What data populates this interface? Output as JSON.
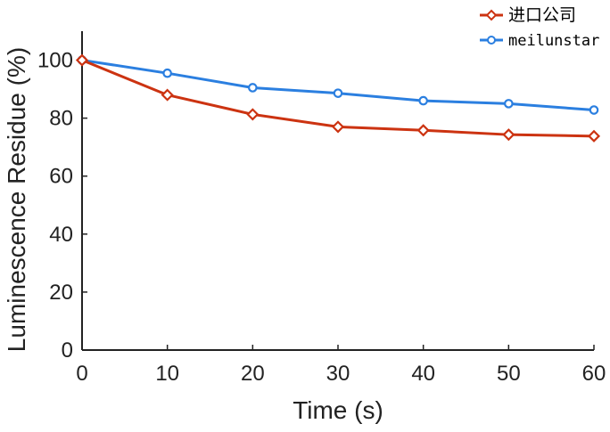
{
  "chart_data": {
    "type": "line",
    "x": [
      0,
      10,
      20,
      30,
      40,
      50,
      60
    ],
    "series": [
      {
        "name": "进口公司",
        "values": [
          100,
          88,
          81.3,
          77,
          75.8,
          74.3,
          73.8
        ],
        "color": "#cc3311",
        "marker": "diamond"
      },
      {
        "name": "meilunstar",
        "values": [
          100,
          95.5,
          90.5,
          88.6,
          86,
          85,
          82.8
        ],
        "color": "#2b7fe0",
        "marker": "circle"
      }
    ],
    "xlabel": "Time (s)",
    "ylabel": "Luminescence Residue (%)",
    "xlim": [
      0,
      60
    ],
    "ylim": [
      0,
      110
    ],
    "xticks": [
      "0",
      "10",
      "20",
      "30",
      "40",
      "50",
      "60"
    ],
    "yticks": [
      "0",
      "20",
      "40",
      "60",
      "80",
      "100"
    ],
    "grid": false,
    "legend_position": "top-right"
  }
}
